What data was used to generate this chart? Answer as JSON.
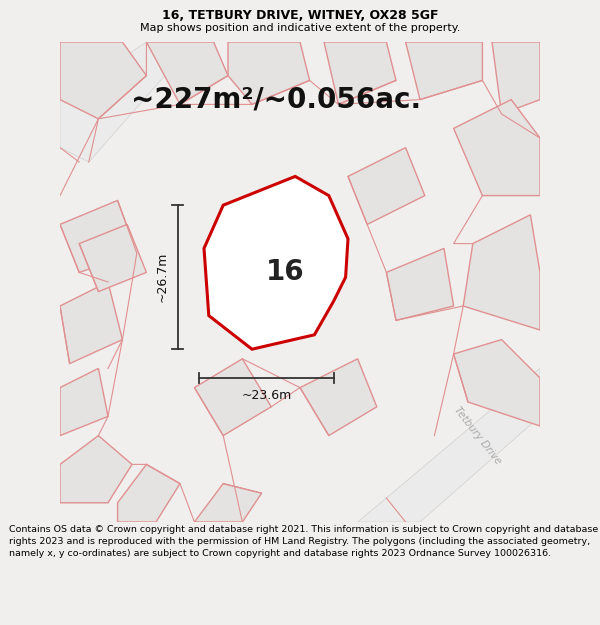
{
  "title_line1": "16, TETBURY DRIVE, WITNEY, OX28 5GF",
  "title_line2": "Map shows position and indicative extent of the property.",
  "area_label": "~227m²/~0.056ac.",
  "width_label": "~23.6m",
  "height_label": "~26.7m",
  "number_label": "16",
  "footer_text": "Contains OS data © Crown copyright and database right 2021. This information is subject to Crown copyright and database rights 2023 and is reproduced with the permission of HM Land Registry. The polygons (including the associated geometry, namely x, y co-ordinates) are subject to Crown copyright and database rights 2023 Ordnance Survey 100026316.",
  "bg_color": "#f0efed",
  "map_bg_color": "#f0efed",
  "plot_fill_color": "#ffffff",
  "plot_edge_color": "#cc0000",
  "neighbor_edge_color": "#e09090",
  "neighbor_fill_color": "#e4e3e1",
  "title_fontsize": 9,
  "subtitle_fontsize": 8,
  "area_fontsize": 20,
  "number_fontsize": 20,
  "dim_fontsize": 9,
  "footer_fontsize": 6.8,
  "road_label_color": "#aaaaaa",
  "dim_color": "#333333"
}
